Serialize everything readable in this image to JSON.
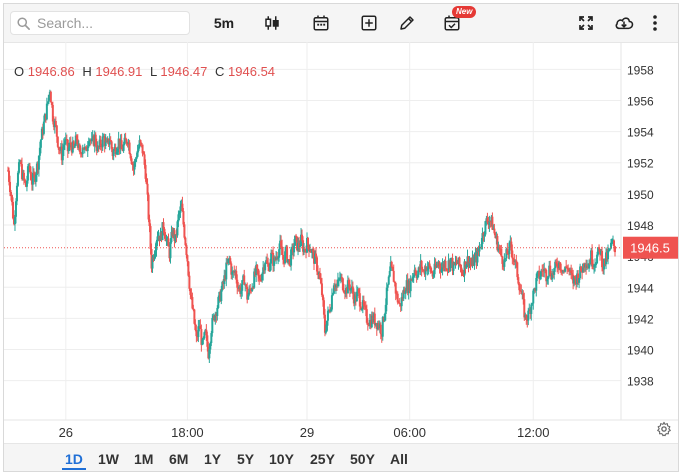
{
  "toolbar": {
    "search_placeholder": "Search...",
    "interval_label": "5m",
    "new_badge": "New",
    "icons": [
      "search-icon",
      "candlestick-icon",
      "calendar-icon",
      "add-box-icon",
      "pencil-icon",
      "calendar-check-icon",
      "fullscreen-icon",
      "cloud-download-icon",
      "more-vert-icon"
    ]
  },
  "ohlc": {
    "o_label": "O",
    "o_value": "1946.86",
    "h_label": "H",
    "h_value": "1946.91",
    "l_label": "L",
    "l_value": "1946.47",
    "c_label": "C",
    "c_value": "1946.54"
  },
  "price_tag": "1946.5",
  "colors": {
    "up": "#26a69a",
    "down": "#ef5350",
    "tag": "#ef5350",
    "active": "#1f6fd6"
  },
  "chart_data": {
    "type": "candlestick",
    "y_ticks": [
      "1958",
      "1956",
      "1954",
      "1952",
      "1950",
      "1948",
      "1946",
      "1944",
      "1942",
      "1940",
      "1938"
    ],
    "x_ticks": [
      "26",
      "18:00",
      "29",
      "06:00",
      "12:00"
    ],
    "ylim": [
      1936.5,
      1959.5
    ],
    "last_price": 1946.54,
    "grid": true,
    "path": [
      [
        0,
        1951.5
      ],
      [
        3,
        1950.0
      ],
      [
        6,
        1948.0
      ],
      [
        9,
        1950.8
      ],
      [
        12,
        1952.0
      ],
      [
        15,
        1951.0
      ],
      [
        18,
        1950.5
      ],
      [
        21,
        1951.8
      ],
      [
        24,
        1950.8
      ],
      [
        27,
        1951.2
      ],
      [
        30,
        1952.0
      ],
      [
        33,
        1953.5
      ],
      [
        36,
        1954.5
      ],
      [
        39,
        1955.5
      ],
      [
        42,
        1956.8
      ],
      [
        45,
        1955.0
      ],
      [
        48,
        1954.2
      ],
      [
        51,
        1953.0
      ],
      [
        54,
        1952.5
      ],
      [
        57,
        1953.5
      ],
      [
        60,
        1952.8
      ],
      [
        63,
        1953.2
      ],
      [
        66,
        1952.8
      ],
      [
        69,
        1953.6
      ],
      [
        72,
        1952.4
      ],
      [
        75,
        1953.2
      ],
      [
        78,
        1952.6
      ],
      [
        81,
        1953.8
      ],
      [
        84,
        1953.2
      ],
      [
        87,
        1953.6
      ],
      [
        90,
        1952.8
      ],
      [
        93,
        1953.2
      ],
      [
        96,
        1953.6
      ],
      [
        99,
        1953.0
      ],
      [
        102,
        1953.6
      ],
      [
        105,
        1952.6
      ],
      [
        108,
        1953.0
      ],
      [
        111,
        1953.4
      ],
      [
        114,
        1952.8
      ],
      [
        117,
        1953.2
      ],
      [
        120,
        1953.6
      ],
      [
        123,
        1952.6
      ],
      [
        126,
        1951.6
      ],
      [
        129,
        1952.6
      ],
      [
        132,
        1953.2
      ],
      [
        135,
        1952.8
      ],
      [
        138,
        1951.4
      ],
      [
        141,
        1948.6
      ],
      [
        144,
        1945.5
      ],
      [
        147,
        1946.5
      ],
      [
        150,
        1947.5
      ],
      [
        153,
        1947.2
      ],
      [
        156,
        1948.0
      ],
      [
        159,
        1947.0
      ],
      [
        162,
        1946.2
      ],
      [
        165,
        1947.6
      ],
      [
        168,
        1947.0
      ],
      [
        171,
        1948.5
      ],
      [
        174,
        1949.2
      ],
      [
        177,
        1947.5
      ],
      [
        180,
        1945.8
      ],
      [
        183,
        1943.5
      ],
      [
        186,
        1942.2
      ],
      [
        189,
        1940.6
      ],
      [
        192,
        1941.6
      ],
      [
        195,
        1940.2
      ],
      [
        198,
        1941.0
      ],
      [
        201,
        1939.8
      ],
      [
        204,
        1941.4
      ],
      [
        207,
        1942.2
      ],
      [
        210,
        1942.8
      ],
      [
        213,
        1943.5
      ],
      [
        216,
        1944.2
      ],
      [
        219,
        1945.2
      ],
      [
        222,
        1945.8
      ],
      [
        225,
        1944.8
      ],
      [
        228,
        1945.0
      ],
      [
        231,
        1944.0
      ],
      [
        234,
        1943.8
      ],
      [
        237,
        1944.6
      ],
      [
        240,
        1943.4
      ],
      [
        243,
        1943.8
      ],
      [
        246,
        1944.4
      ],
      [
        249,
        1945.0
      ],
      [
        252,
        1944.4
      ],
      [
        255,
        1945.0
      ],
      [
        258,
        1945.8
      ],
      [
        261,
        1945.2
      ],
      [
        264,
        1946.0
      ],
      [
        267,
        1945.6
      ],
      [
        270,
        1946.2
      ],
      [
        273,
        1946.6
      ],
      [
        276,
        1945.8
      ],
      [
        279,
        1946.2
      ],
      [
        282,
        1945.6
      ],
      [
        285,
        1946.2
      ],
      [
        288,
        1947.0
      ],
      [
        291,
        1946.6
      ],
      [
        294,
        1947.0
      ],
      [
        297,
        1946.4
      ],
      [
        300,
        1946.8
      ],
      [
        303,
        1946.6
      ],
      [
        306,
        1946.0
      ],
      [
        309,
        1945.6
      ],
      [
        312,
        1944.8
      ],
      [
        315,
        1943.6
      ],
      [
        318,
        1941.2
      ],
      [
        321,
        1942.2
      ],
      [
        324,
        1943.0
      ],
      [
        327,
        1944.4
      ],
      [
        330,
        1944.0
      ],
      [
        333,
        1944.6
      ],
      [
        336,
        1944.2
      ],
      [
        339,
        1943.8
      ],
      [
        342,
        1944.2
      ],
      [
        345,
        1943.8
      ],
      [
        348,
        1943.2
      ],
      [
        351,
        1943.6
      ],
      [
        354,
        1943.0
      ],
      [
        357,
        1942.6
      ],
      [
        360,
        1942.0
      ],
      [
        363,
        1941.8
      ],
      [
        366,
        1942.0
      ],
      [
        369,
        1941.8
      ],
      [
        372,
        1941.6
      ],
      [
        375,
        1941.2
      ],
      [
        378,
        1942.6
      ],
      [
        381,
        1944.0
      ],
      [
        384,
        1945.2
      ],
      [
        387,
        1944.6
      ],
      [
        390,
        1943.4
      ],
      [
        393,
        1942.8
      ],
      [
        396,
        1943.4
      ],
      [
        399,
        1944.2
      ],
      [
        402,
        1944.0
      ],
      [
        405,
        1944.6
      ],
      [
        408,
        1945.2
      ],
      [
        411,
        1944.8
      ],
      [
        414,
        1945.4
      ],
      [
        417,
        1945.0
      ],
      [
        420,
        1945.4
      ],
      [
        423,
        1945.2
      ],
      [
        426,
        1944.8
      ],
      [
        429,
        1945.2
      ],
      [
        432,
        1945.6
      ],
      [
        435,
        1945.2
      ],
      [
        438,
        1945.6
      ],
      [
        441,
        1945.4
      ],
      [
        444,
        1945.8
      ],
      [
        447,
        1945.2
      ],
      [
        450,
        1945.6
      ],
      [
        453,
        1945.4
      ],
      [
        456,
        1945.0
      ],
      [
        459,
        1945.6
      ],
      [
        462,
        1945.8
      ],
      [
        465,
        1945.4
      ],
      [
        468,
        1945.8
      ],
      [
        471,
        1946.0
      ],
      [
        474,
        1946.8
      ],
      [
        477,
        1947.6
      ],
      [
        480,
        1948.2
      ],
      [
        483,
        1948.4
      ],
      [
        486,
        1948.0
      ],
      [
        489,
        1947.2
      ],
      [
        492,
        1946.6
      ],
      [
        495,
        1946.0
      ],
      [
        498,
        1945.6
      ],
      [
        501,
        1946.2
      ],
      [
        504,
        1946.6
      ],
      [
        507,
        1946.0
      ],
      [
        510,
        1945.2
      ],
      [
        513,
        1944.2
      ],
      [
        516,
        1943.2
      ],
      [
        519,
        1942.0
      ],
      [
        522,
        1942.2
      ],
      [
        525,
        1943.0
      ],
      [
        528,
        1943.8
      ],
      [
        531,
        1944.6
      ],
      [
        534,
        1944.8
      ],
      [
        537,
        1945.2
      ],
      [
        540,
        1944.8
      ],
      [
        543,
        1945.2
      ],
      [
        546,
        1944.8
      ],
      [
        549,
        1945.2
      ],
      [
        552,
        1945.6
      ],
      [
        555,
        1945.4
      ],
      [
        558,
        1945.0
      ],
      [
        561,
        1945.4
      ],
      [
        564,
        1944.8
      ],
      [
        567,
        1944.4
      ],
      [
        570,
        1944.6
      ],
      [
        573,
        1944.8
      ],
      [
        576,
        1945.2
      ],
      [
        579,
        1945.8
      ],
      [
        582,
        1945.4
      ],
      [
        585,
        1946.0
      ],
      [
        588,
        1945.6
      ],
      [
        591,
        1946.0
      ],
      [
        594,
        1946.4
      ],
      [
        597,
        1945.4
      ],
      [
        600,
        1945.8
      ],
      [
        603,
        1946.2
      ],
      [
        606,
        1946.8
      ],
      [
        609,
        1946.54
      ]
    ]
  },
  "ranges": [
    "1D",
    "1W",
    "1M",
    "6M",
    "1Y",
    "5Y",
    "10Y",
    "25Y",
    "50Y",
    "All"
  ],
  "active_range": "1D"
}
